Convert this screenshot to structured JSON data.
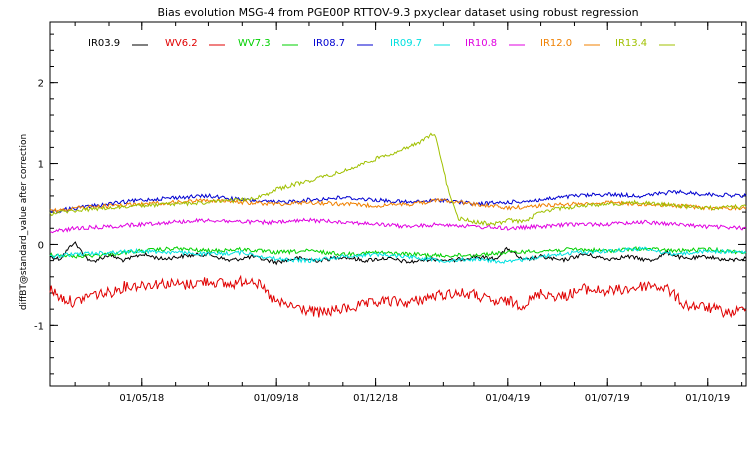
{
  "chart_data": {
    "type": "line",
    "title": "Bias evolution MSG-4 from PGE00P RTTOV-9.3 pxyclear dataset using robust regression",
    "ylabel": "diffBT@standard_value after correction",
    "xlabel": "",
    "x_range": [
      "2018-02-06",
      "2019-11-05"
    ],
    "ylim": [
      -1.75,
      2.75
    ],
    "y_ticks": [
      -1,
      0,
      1,
      2
    ],
    "x_ticks": [
      {
        "date": "2018-05-01",
        "label": "01/05/18"
      },
      {
        "date": "2018-09-01",
        "label": "01/09/18"
      },
      {
        "date": "2018-12-01",
        "label": "01/12/18"
      },
      {
        "date": "2019-04-01",
        "label": "01/04/19"
      },
      {
        "date": "2019-07-01",
        "label": "01/07/19"
      },
      {
        "date": "2019-10-01",
        "label": "01/10/19"
      }
    ],
    "grid": false,
    "legend_position": "top",
    "series": [
      {
        "name": "IR03.9",
        "color": "#000000",
        "points": [
          [
            "2018-02-06",
            -0.15
          ],
          [
            "2018-02-15",
            -0.18
          ],
          [
            "2018-02-28",
            0.03
          ],
          [
            "2018-03-15",
            -0.22
          ],
          [
            "2018-04-01",
            -0.13
          ],
          [
            "2018-04-15",
            -0.2
          ],
          [
            "2018-05-01",
            -0.12
          ],
          [
            "2018-05-20",
            -0.18
          ],
          [
            "2018-06-10",
            -0.14
          ],
          [
            "2018-07-01",
            -0.12
          ],
          [
            "2018-07-20",
            -0.2
          ],
          [
            "2018-08-10",
            -0.15
          ],
          [
            "2018-09-01",
            -0.22
          ],
          [
            "2018-09-20",
            -0.17
          ],
          [
            "2018-10-10",
            -0.2
          ],
          [
            "2018-11-01",
            -0.15
          ],
          [
            "2018-11-20",
            -0.2
          ],
          [
            "2018-12-10",
            -0.17
          ],
          [
            "2019-01-01",
            -0.22
          ],
          [
            "2019-01-20",
            -0.18
          ],
          [
            "2019-02-10",
            -0.2
          ],
          [
            "2019-03-01",
            -0.15
          ],
          [
            "2019-03-20",
            -0.18
          ],
          [
            "2019-04-01",
            -0.05
          ],
          [
            "2019-04-15",
            -0.2
          ],
          [
            "2019-05-01",
            -0.15
          ],
          [
            "2019-05-20",
            -0.2
          ],
          [
            "2019-06-10",
            -0.12
          ],
          [
            "2019-07-01",
            -0.18
          ],
          [
            "2019-07-20",
            -0.15
          ],
          [
            "2019-08-10",
            -0.2
          ],
          [
            "2019-08-25",
            -0.1
          ],
          [
            "2019-09-10",
            -0.18
          ],
          [
            "2019-10-01",
            -0.15
          ],
          [
            "2019-10-20",
            -0.2
          ],
          [
            "2019-11-05",
            -0.17
          ]
        ]
      },
      {
        "name": "WV6.2",
        "color": "#e00000",
        "points": [
          [
            "2018-02-06",
            -0.55
          ],
          [
            "2018-02-15",
            -0.65
          ],
          [
            "2018-03-01",
            -0.72
          ],
          [
            "2018-03-15",
            -0.62
          ],
          [
            "2018-04-01",
            -0.6
          ],
          [
            "2018-04-15",
            -0.52
          ],
          [
            "2018-05-01",
            -0.5
          ],
          [
            "2018-05-20",
            -0.48
          ],
          [
            "2018-06-10",
            -0.5
          ],
          [
            "2018-07-01",
            -0.45
          ],
          [
            "2018-07-20",
            -0.5
          ],
          [
            "2018-08-10",
            -0.42
          ],
          [
            "2018-08-20",
            -0.55
          ],
          [
            "2018-09-01",
            -0.72
          ],
          [
            "2018-09-20",
            -0.78
          ],
          [
            "2018-10-10",
            -0.85
          ],
          [
            "2018-11-01",
            -0.8
          ],
          [
            "2018-11-20",
            -0.75
          ],
          [
            "2018-12-10",
            -0.7
          ],
          [
            "2019-01-01",
            -0.72
          ],
          [
            "2019-01-20",
            -0.65
          ],
          [
            "2019-02-10",
            -0.6
          ],
          [
            "2019-03-01",
            -0.62
          ],
          [
            "2019-03-20",
            -0.72
          ],
          [
            "2019-04-01",
            -0.7
          ],
          [
            "2019-04-15",
            -0.75
          ],
          [
            "2019-05-01",
            -0.6
          ],
          [
            "2019-05-20",
            -0.65
          ],
          [
            "2019-06-10",
            -0.55
          ],
          [
            "2019-07-01",
            -0.58
          ],
          [
            "2019-07-20",
            -0.55
          ],
          [
            "2019-08-10",
            -0.5
          ],
          [
            "2019-08-25",
            -0.55
          ],
          [
            "2019-09-10",
            -0.75
          ],
          [
            "2019-10-01",
            -0.78
          ],
          [
            "2019-10-20",
            -0.85
          ],
          [
            "2019-11-05",
            -0.8
          ]
        ]
      },
      {
        "name": "WV7.3",
        "color": "#00d000",
        "points": [
          [
            "2018-02-06",
            -0.12
          ],
          [
            "2018-03-01",
            -0.15
          ],
          [
            "2018-04-01",
            -0.12
          ],
          [
            "2018-05-01",
            -0.08
          ],
          [
            "2018-06-01",
            -0.05
          ],
          [
            "2018-07-01",
            -0.08
          ],
          [
            "2018-08-01",
            -0.06
          ],
          [
            "2018-09-01",
            -0.1
          ],
          [
            "2018-10-01",
            -0.08
          ],
          [
            "2018-11-01",
            -0.12
          ],
          [
            "2018-12-01",
            -0.1
          ],
          [
            "2019-01-01",
            -0.12
          ],
          [
            "2019-02-01",
            -0.14
          ],
          [
            "2019-03-01",
            -0.13
          ],
          [
            "2019-04-01",
            -0.1
          ],
          [
            "2019-05-01",
            -0.08
          ],
          [
            "2019-06-01",
            -0.06
          ],
          [
            "2019-07-01",
            -0.08
          ],
          [
            "2019-08-01",
            -0.05
          ],
          [
            "2019-09-01",
            -0.08
          ],
          [
            "2019-10-01",
            -0.06
          ],
          [
            "2019-11-05",
            -0.1
          ]
        ]
      },
      {
        "name": "IR08.7",
        "color": "#0000d0",
        "points": [
          [
            "2018-02-06",
            0.4
          ],
          [
            "2018-03-01",
            0.45
          ],
          [
            "2018-04-01",
            0.5
          ],
          [
            "2018-05-01",
            0.55
          ],
          [
            "2018-06-01",
            0.58
          ],
          [
            "2018-07-01",
            0.6
          ],
          [
            "2018-08-01",
            0.55
          ],
          [
            "2018-09-01",
            0.52
          ],
          [
            "2018-10-01",
            0.55
          ],
          [
            "2018-11-01",
            0.58
          ],
          [
            "2018-12-01",
            0.55
          ],
          [
            "2019-01-01",
            0.52
          ],
          [
            "2019-02-01",
            0.55
          ],
          [
            "2019-03-01",
            0.5
          ],
          [
            "2019-04-01",
            0.52
          ],
          [
            "2019-05-01",
            0.55
          ],
          [
            "2019-06-01",
            0.6
          ],
          [
            "2019-07-01",
            0.62
          ],
          [
            "2019-08-01",
            0.6
          ],
          [
            "2019-09-01",
            0.65
          ],
          [
            "2019-10-01",
            0.62
          ],
          [
            "2019-11-05",
            0.6
          ]
        ]
      },
      {
        "name": "IR09.7",
        "color": "#00e0e0",
        "points": [
          [
            "2018-02-06",
            -0.15
          ],
          [
            "2018-03-01",
            -0.12
          ],
          [
            "2018-04-01",
            -0.1
          ],
          [
            "2018-05-01",
            -0.08
          ],
          [
            "2018-06-01",
            -0.1
          ],
          [
            "2018-07-01",
            -0.12
          ],
          [
            "2018-08-01",
            -0.1
          ],
          [
            "2018-09-01",
            -0.18
          ],
          [
            "2018-10-01",
            -0.2
          ],
          [
            "2018-11-01",
            -0.15
          ],
          [
            "2018-12-01",
            -0.12
          ],
          [
            "2019-01-01",
            -0.15
          ],
          [
            "2019-02-01",
            -0.2
          ],
          [
            "2019-03-01",
            -0.18
          ],
          [
            "2019-04-01",
            -0.22
          ],
          [
            "2019-05-01",
            -0.15
          ],
          [
            "2019-06-01",
            -0.1
          ],
          [
            "2019-07-01",
            -0.08
          ],
          [
            "2019-08-01",
            -0.05
          ],
          [
            "2019-09-01",
            -0.12
          ],
          [
            "2019-10-01",
            -0.08
          ],
          [
            "2019-11-05",
            -0.1
          ]
        ]
      },
      {
        "name": "IR10.8",
        "color": "#e000e0",
        "points": [
          [
            "2018-02-06",
            0.15
          ],
          [
            "2018-03-01",
            0.2
          ],
          [
            "2018-04-01",
            0.22
          ],
          [
            "2018-05-01",
            0.25
          ],
          [
            "2018-06-01",
            0.28
          ],
          [
            "2018-07-01",
            0.3
          ],
          [
            "2018-08-01",
            0.28
          ],
          [
            "2018-09-01",
            0.27
          ],
          [
            "2018-10-01",
            0.3
          ],
          [
            "2018-11-01",
            0.28
          ],
          [
            "2018-12-01",
            0.25
          ],
          [
            "2019-01-01",
            0.22
          ],
          [
            "2019-02-01",
            0.25
          ],
          [
            "2019-03-01",
            0.22
          ],
          [
            "2019-04-01",
            0.2
          ],
          [
            "2019-05-01",
            0.22
          ],
          [
            "2019-06-01",
            0.25
          ],
          [
            "2019-07-01",
            0.25
          ],
          [
            "2019-08-01",
            0.28
          ],
          [
            "2019-09-01",
            0.25
          ],
          [
            "2019-10-01",
            0.22
          ],
          [
            "2019-11-05",
            0.2
          ]
        ]
      },
      {
        "name": "IR12.0",
        "color": "#f08000",
        "points": [
          [
            "2018-02-06",
            0.42
          ],
          [
            "2018-03-01",
            0.45
          ],
          [
            "2018-04-01",
            0.48
          ],
          [
            "2018-05-01",
            0.5
          ],
          [
            "2018-06-01",
            0.52
          ],
          [
            "2018-07-01",
            0.55
          ],
          [
            "2018-08-01",
            0.52
          ],
          [
            "2018-09-01",
            0.5
          ],
          [
            "2018-10-01",
            0.52
          ],
          [
            "2018-11-01",
            0.5
          ],
          [
            "2018-12-01",
            0.48
          ],
          [
            "2019-01-01",
            0.5
          ],
          [
            "2019-02-01",
            0.55
          ],
          [
            "2019-03-01",
            0.5
          ],
          [
            "2019-04-01",
            0.45
          ],
          [
            "2019-05-01",
            0.48
          ],
          [
            "2019-06-01",
            0.5
          ],
          [
            "2019-07-01",
            0.52
          ],
          [
            "2019-08-01",
            0.5
          ],
          [
            "2019-09-01",
            0.48
          ],
          [
            "2019-10-01",
            0.45
          ],
          [
            "2019-11-05",
            0.45
          ]
        ]
      },
      {
        "name": "IR13.4",
        "color": "#a0c000",
        "points": [
          [
            "2018-02-06",
            0.38
          ],
          [
            "2018-03-01",
            0.42
          ],
          [
            "2018-04-01",
            0.45
          ],
          [
            "2018-05-01",
            0.48
          ],
          [
            "2018-06-01",
            0.5
          ],
          [
            "2018-07-01",
            0.52
          ],
          [
            "2018-08-01",
            0.55
          ],
          [
            "2018-08-20",
            0.6
          ],
          [
            "2018-09-01",
            0.68
          ],
          [
            "2018-09-20",
            0.75
          ],
          [
            "2018-10-10",
            0.82
          ],
          [
            "2018-11-01",
            0.9
          ],
          [
            "2018-11-20",
            1.0
          ],
          [
            "2018-12-10",
            1.1
          ],
          [
            "2019-01-01",
            1.2
          ],
          [
            "2019-01-15",
            1.3
          ],
          [
            "2019-01-24",
            1.38
          ],
          [
            "2019-02-05",
            0.7
          ],
          [
            "2019-02-15",
            0.32
          ],
          [
            "2019-03-01",
            0.28
          ],
          [
            "2019-03-20",
            0.25
          ],
          [
            "2019-04-01",
            0.3
          ],
          [
            "2019-04-15",
            0.28
          ],
          [
            "2019-05-01",
            0.4
          ],
          [
            "2019-05-20",
            0.45
          ],
          [
            "2019-06-10",
            0.48
          ],
          [
            "2019-07-01",
            0.5
          ],
          [
            "2019-08-01",
            0.52
          ],
          [
            "2019-09-01",
            0.48
          ],
          [
            "2019-10-01",
            0.45
          ],
          [
            "2019-11-05",
            0.47
          ]
        ]
      }
    ]
  }
}
